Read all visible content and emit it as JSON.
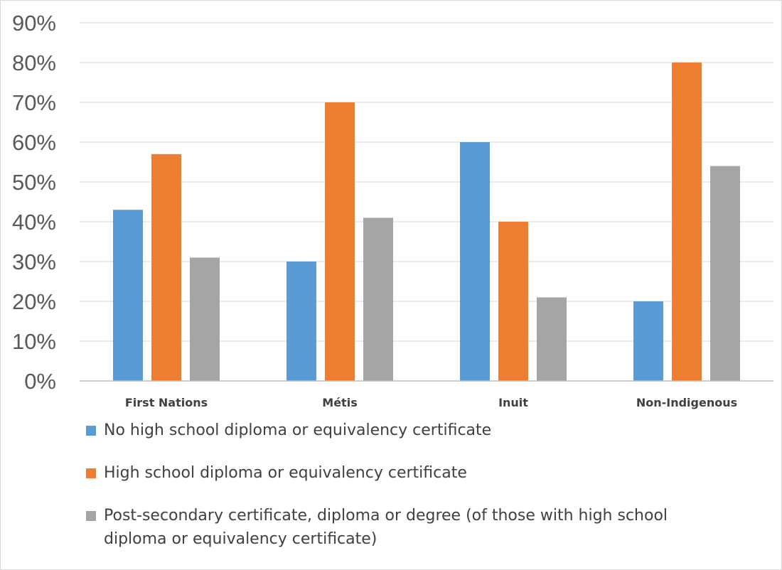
{
  "chart_data": {
    "type": "bar",
    "title": "",
    "xlabel": "",
    "ylabel": "",
    "categories": [
      "First Nations",
      "Métis",
      "Inuit",
      "Non-Indigenous"
    ],
    "series": [
      {
        "name": "No high school diploma or equivalency certificate",
        "color": "#5B9BD5",
        "values": [
          43,
          30,
          60,
          20
        ]
      },
      {
        "name": "High school diploma or equivalency certificate",
        "color": "#ED7D31",
        "values": [
          57,
          70,
          40,
          80
        ]
      },
      {
        "name": "Post-secondary certificate, diploma or degree (of those with high school diploma or equivalency certificate)",
        "color": "#A5A5A5",
        "values": [
          31,
          41,
          21,
          54
        ]
      }
    ],
    "ylim": [
      0,
      90
    ],
    "yticks": [
      0,
      10,
      20,
      30,
      40,
      50,
      60,
      70,
      80,
      90
    ],
    "ytick_labels": [
      "0%",
      "10%",
      "20%",
      "30%",
      "40%",
      "50%",
      "60%",
      "70%",
      "80%",
      "90%"
    ],
    "grid": true,
    "legend_position": "bottom"
  }
}
